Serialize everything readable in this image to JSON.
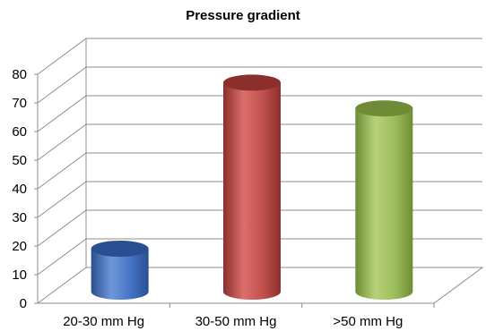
{
  "chart_data": {
    "type": "bar",
    "title": "Pressure gradient",
    "categories": [
      "20-30 mm Hg",
      "30-50 mm Hg",
      ">50 mm  Hg"
    ],
    "values": [
      15,
      73,
      64
    ],
    "ylim": [
      0,
      80
    ],
    "yticks": [
      "0",
      "10",
      "20",
      "30",
      "40",
      "50",
      "60",
      "70",
      "80"
    ],
    "xlabel": "",
    "ylabel": "",
    "grid": true,
    "style": "3d-cylinder",
    "bar_colors": [
      "#4472C4",
      "#C0504D",
      "#9BBB59"
    ],
    "bar_colors_dark": [
      "#2A4F91",
      "#8C2F2C",
      "#6E8C35"
    ],
    "bar_colors_light": [
      "#6F97DA",
      "#DB6F6C",
      "#B7D27A"
    ]
  }
}
